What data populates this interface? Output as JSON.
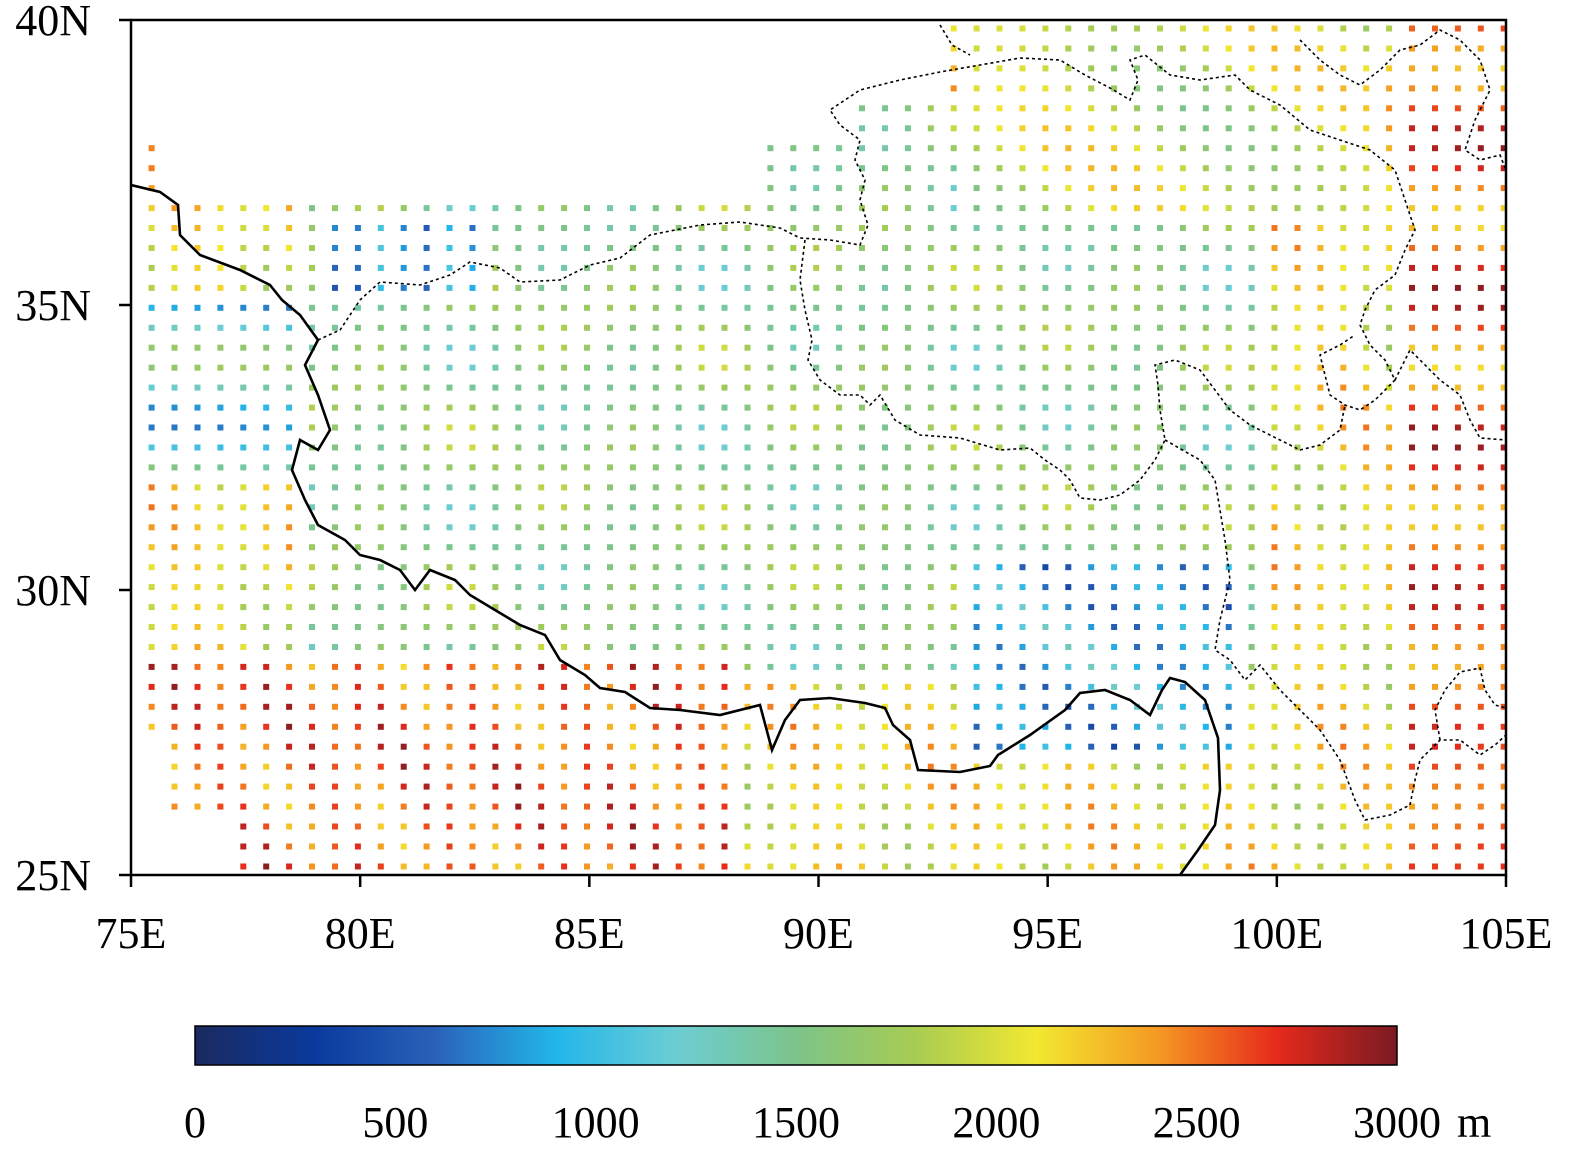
{
  "map": {
    "lon_range": [
      75,
      105
    ],
    "lat_range": [
      25,
      40
    ],
    "grid_step_deg": 0.5,
    "variable_unit": "m",
    "x_ticks": [
      "75E",
      "80E",
      "85E",
      "90E",
      "95E",
      "100E",
      "105E"
    ],
    "y_ticks": [
      "25N",
      "30N",
      "35N",
      "40N"
    ],
    "colorbar": {
      "min": 0,
      "max": 3000,
      "tick_values": [
        0,
        500,
        1000,
        1500,
        2000,
        2500,
        3000
      ],
      "tick_labels": [
        "0",
        "500",
        "1000",
        "1500",
        "2000",
        "2500",
        "3000"
      ],
      "unit_label": "m",
      "colors": [
        "#1a2a5e",
        "#0a3a9e",
        "#2a62b8",
        "#22b6ea",
        "#6ccdd4",
        "#7cc48a",
        "#a8cc52",
        "#f2e830",
        "#f59a22",
        "#e62a1c",
        "#7a1a22"
      ]
    },
    "boundary_colors": {
      "solid": "#000000",
      "dashed": "#000000"
    }
  }
}
